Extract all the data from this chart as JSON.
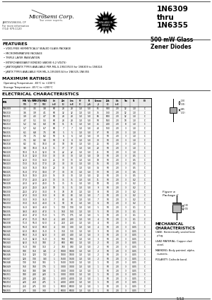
{
  "title_part": "1N6309\nthru\n1N6355",
  "subtitle": "500 mW Glass\nZener Diodes",
  "company": "Microsemi Corp.",
  "company_sub": "Your zener experts.",
  "page_ref": "JANTXV1N6336, CP\nFor more information\n(714) 979-1120",
  "features_title": "FEATURES",
  "features": [
    "VOID-FREE HERMETICALLY SEALED GLASS PACKAGE",
    "MICROMINIMATURE PACKAGE",
    "TRIPLE LAYER PASSIVATION",
    "INTERCHANGEABLY BONDED (ABOVE 6.2 VOLTS)",
    "JANTXV/JANTX TYPES AVAILABLE PER MIL-S-19500/533 for 1N6309 to 1N6324",
    "JANTX TYPES AVAILABLE FOR MIL-S-19500/534 for 1N6325-1N6355"
  ],
  "max_ratings_title": "MAXIMUM RATINGS",
  "max_ratings": [
    "Operating Temperature: -65°C to +200°C",
    "Storage Temperature: -65°C to +200°C"
  ],
  "elec_char_title": "ELECTRICAL CHARACTERISTICS",
  "table_note": "Figure a\nPackage C",
  "mech_title": "MECHANICAL\nCHARACTERISTICS",
  "mech_items": [
    "CASE: Hermetically sealed heat\n  plug.",
    "LEAD MATERIAL: Copper clad\n  steel.",
    "MARKING: Body painted, alpha-\n  numeric.",
    "POLARITY: Cathode band."
  ],
  "page_num": "5-53",
  "bg_color": "#ffffff",
  "star_text": "ALSO\nAVAILABLE IN\nSURFACE\nMOUNT",
  "table_col_headers": [
    "PIN",
    "MIN",
    "TYP",
    "MAX",
    "Izt\nmA",
    "Zzt\nΩ",
    "Izm\nmA",
    "Vf\nV",
    "IR\nmA",
    "Cz\npF",
    "Zzk\nΩ",
    "Izk\nmA",
    "Tm",
    "Tc",
    "CS"
  ],
  "table_rows": [
    [
      "1N6309",
      "3.3",
      "3.5",
      "3.8",
      "60",
      "28",
      "28",
      "1.0",
      "5.0",
      "85",
      "900",
      "2.0",
      "12",
      "1.0",
      "C"
    ],
    [
      "1N6310",
      "3.6",
      "3.9",
      "4.1",
      "60",
      "32",
      "32",
      "1.0",
      "5.0",
      "75",
      "750",
      "2.0",
      "12",
      "1.0",
      "C"
    ],
    [
      "1N6311",
      "3.9",
      "4.3",
      "4.7",
      "60",
      "28",
      "28",
      "1.0",
      "5.0",
      "65",
      "600",
      "2.0",
      "12",
      "1.0",
      "C"
    ],
    [
      "1N6312",
      "4.7",
      "5.1",
      "5.5",
      "60",
      "28",
      "28",
      "1.0",
      "5.0",
      "50",
      "550",
      "2.0",
      "10",
      "1.0",
      "C"
    ],
    [
      "1N6313",
      "5.2",
      "5.6",
      "6.0",
      "60",
      "11",
      "11",
      "1.0",
      "5.0",
      "45",
      "400",
      "2.0",
      "8",
      "1.0",
      "C"
    ],
    [
      "1N6314",
      "5.7",
      "6.2",
      "6.7",
      "60",
      "7",
      "7",
      "1.0",
      "5.0",
      "40",
      "150",
      "2.0",
      "3",
      "1.0",
      "C"
    ],
    [
      "1N6315",
      "6.1",
      "6.8",
      "7.5",
      "60",
      "5",
      "5",
      "1.0",
      "5.0",
      "37",
      "50",
      "2.0",
      "3",
      "1.0",
      "C"
    ],
    [
      "1N6316",
      "7.0",
      "7.5",
      "8.2",
      "50",
      "6",
      "6",
      "1.0",
      "5.0",
      "30",
      "50",
      "2.0",
      "3",
      "1.0",
      "C"
    ],
    [
      "1N6317",
      "7.5",
      "8.2",
      "9.0",
      "50",
      "8",
      "8",
      "1.0",
      "5.0",
      "30",
      "50",
      "2.0",
      "3",
      "1.0",
      "C"
    ],
    [
      "1N6318",
      "8.2",
      "9.1",
      "10.0",
      "40",
      "10",
      "10",
      "1.0",
      "5.0",
      "25",
      "50",
      "2.0",
      "3",
      "1.0",
      "C"
    ],
    [
      "1N6319",
      "9.0",
      "10.0",
      "11.0",
      "35",
      "17",
      "17",
      "1.0",
      "5.0",
      "23",
      "50",
      "2.0",
      "3",
      "1.0",
      "C"
    ],
    [
      "1N6320",
      "10.0",
      "11.0",
      "12.0",
      "30",
      "22",
      "22",
      "1.0",
      "5.0",
      "21",
      "50",
      "2.0",
      "3",
      "1.0",
      "C"
    ],
    [
      "1N6321",
      "11.0",
      "12.0",
      "13.0",
      "30",
      "30",
      "30",
      "1.0",
      "5.0",
      "19",
      "50",
      "2.0",
      "3",
      "0.5",
      "C"
    ],
    [
      "1N6322",
      "12.0",
      "13.0",
      "14.0",
      "25",
      "13",
      "13",
      "1.0",
      "5.0",
      "18",
      "50",
      "2.0",
      "3",
      "0.5",
      "C"
    ],
    [
      "1N6323",
      "13.0",
      "15.0",
      "17.0",
      "20",
      "30",
      "30",
      "1.0",
      "5.0",
      "15",
      "50",
      "2.0",
      "3",
      "0.5",
      "C"
    ],
    [
      "1N6324",
      "14.0",
      "16.0",
      "18.0",
      "20",
      "30",
      "30",
      "1.0",
      "5.0",
      "14",
      "50",
      "2.0",
      "3",
      "0.5",
      "C"
    ],
    [
      "1N6325",
      "15.0",
      "17.0",
      "19.0",
      "17",
      "30",
      "30",
      "1.0",
      "5.0",
      "13",
      "50",
      "2.0",
      "3",
      "0.5",
      "C"
    ],
    [
      "1N6326",
      "16.0",
      "18.0",
      "20.0",
      "15",
      "30",
      "30",
      "1.0",
      "5.0",
      "12",
      "50",
      "2.0",
      "3",
      "0.5",
      "C"
    ],
    [
      "1N6327",
      "17.0",
      "20.0",
      "22.0",
      "13",
      "35",
      "35",
      "1.0",
      "5.0",
      "11",
      "50",
      "2.0",
      "3",
      "0.2",
      "C"
    ],
    [
      "1N6328",
      "20.0",
      "22.0",
      "24.0",
      "11",
      "35",
      "35",
      "1.0",
      "5.0",
      "10",
      "50",
      "2.0",
      "3",
      "0.2",
      "C"
    ],
    [
      "1N6329",
      "22.0",
      "24.0",
      "26.0",
      "10",
      "35",
      "35",
      "1.0",
      "5.0",
      "9",
      "50",
      "2.0",
      "3",
      "0.2",
      "C"
    ],
    [
      "1N6330",
      "24.0",
      "27.0",
      "30.0",
      "9",
      "70",
      "70",
      "1.0",
      "5.0",
      "8",
      "50",
      "2.0",
      "3",
      "0.2",
      "C"
    ],
    [
      "1N6331",
      "27.0",
      "30.0",
      "33.0",
      "8",
      "80",
      "80",
      "1.0",
      "5.0",
      "7",
      "50",
      "2.0",
      "3",
      "0.2",
      "C"
    ],
    [
      "1N6332",
      "30.0",
      "33.0",
      "36.0",
      "7",
      "80",
      "80",
      "1.0",
      "5.0",
      "7",
      "50",
      "2.0",
      "3",
      "0.2",
      "C"
    ],
    [
      "1N6333",
      "33.0",
      "36.0",
      "40.0",
      "6",
      "90",
      "90",
      "1.0",
      "5.0",
      "6",
      "50",
      "2.0",
      "3",
      "0.2",
      "C"
    ],
    [
      "1N6334",
      "36.0",
      "39.0",
      "43.0",
      "5",
      "130",
      "130",
      "1.0",
      "5.0",
      "5",
      "50",
      "2.0",
      "3",
      "0.1",
      "C"
    ],
    [
      "1N6335",
      "39.0",
      "43.0",
      "47.0",
      "5",
      "150",
      "150",
      "1.0",
      "5.0",
      "5",
      "50",
      "2.0",
      "3",
      "0.1",
      "C"
    ],
    [
      "1N6336",
      "43.0",
      "47.0",
      "51.0",
      "5",
      "175",
      "175",
      "1.0",
      "5.0",
      "5",
      "50",
      "2.0",
      "3",
      "0.1",
      "C"
    ],
    [
      "1N6337",
      "47.0",
      "51.0",
      "56.0",
      "4",
      "200",
      "200",
      "1.0",
      "5.0",
      "4",
      "50",
      "2.0",
      "3",
      "0.1",
      "C"
    ],
    [
      "1N6338",
      "51.0",
      "56.0",
      "62.0",
      "4",
      "250",
      "250",
      "1.0",
      "5.0",
      "4",
      "50",
      "2.0",
      "3",
      "0.1",
      "C"
    ],
    [
      "1N6339",
      "56.0",
      "62.0",
      "68.0",
      "4",
      "300",
      "300",
      "1.0",
      "5.0",
      "4",
      "50",
      "2.0",
      "3",
      "0.05",
      "C"
    ],
    [
      "1N6340",
      "62.0",
      "68.0",
      "75.0",
      "3",
      "350",
      "350",
      "1.0",
      "5.0",
      "3",
      "50",
      "2.0",
      "3",
      "0.05",
      "C"
    ],
    [
      "1N6341",
      "68.0",
      "75.0",
      "82.0",
      "3",
      "400",
      "400",
      "1.0",
      "5.0",
      "3",
      "50",
      "2.0",
      "3",
      "0.05",
      "C"
    ],
    [
      "1N6342",
      "75.0",
      "82.0",
      "91.0",
      "3",
      "500",
      "500",
      "1.0",
      "5.0",
      "3",
      "50",
      "2.0",
      "3",
      "0.05",
      "C"
    ],
    [
      "1N6343",
      "82.0",
      "91.0",
      "100",
      "2",
      "600",
      "600",
      "1.0",
      "5.0",
      "2",
      "50",
      "2.0",
      "3",
      "0.05",
      "C"
    ],
    [
      "1N6344",
      "91.0",
      "100",
      "110",
      "2",
      "700",
      "700",
      "1.0",
      "5.0",
      "2",
      "50",
      "2.0",
      "3",
      "0.05",
      "C"
    ],
    [
      "1N6345",
      "100",
      "110",
      "121",
      "2",
      "1000",
      "1000",
      "1.0",
      "5.0",
      "2",
      "50",
      "2.0",
      "3",
      "0.05",
      "C"
    ],
    [
      "1N6346",
      "110",
      "120",
      "132",
      "2",
      "1000",
      "1000",
      "1.0",
      "5.0",
      "2",
      "50",
      "2.0",
      "3",
      "0.05",
      "C"
    ],
    [
      "1N6347",
      "120",
      "130",
      "143",
      "1",
      "1500",
      "1500",
      "1.0",
      "5.0",
      "2",
      "50",
      "2.0",
      "3",
      "0.05",
      "C"
    ],
    [
      "1N6348",
      "130",
      "150",
      "165",
      "1",
      "1500",
      "1500",
      "1.0",
      "5.0",
      "1",
      "50",
      "2.0",
      "3",
      "0.05",
      "C"
    ],
    [
      "1N6349",
      "150",
      "160",
      "176",
      "1",
      "3000",
      "3000",
      "1.0",
      "5.0",
      "1",
      "50",
      "2.0",
      "3",
      "0.05",
      "C"
    ],
    [
      "1N6350",
      "160",
      "180",
      "198",
      "1",
      "3000",
      "3000",
      "1.0",
      "5.0",
      "1",
      "50",
      "2.0",
      "3",
      "0.05",
      "C"
    ],
    [
      "1N6351",
      "180",
      "200",
      "220",
      "1",
      "3000",
      "3000",
      "1.0",
      "5.0",
      "1",
      "50",
      "2.0",
      "3",
      "0.05",
      "C"
    ],
    [
      "1N6352",
      "200",
      "220",
      "242",
      "1",
      "4000",
      "4000",
      "1.0",
      "5.0",
      "1",
      "50",
      "2.0",
      "3",
      "0.05",
      "C"
    ],
    [
      "1N6353",
      "220",
      "250",
      "275",
      "1",
      "4000",
      "4000",
      "1.0",
      "5.0",
      "1",
      "50",
      "2.0",
      "3",
      "0.05",
      "C"
    ],
    [
      "1N6354",
      "250",
      "275",
      "303",
      "1",
      "6000",
      "6000",
      "1.0",
      "5.0",
      "1",
      "50",
      "2.0",
      "3",
      "0.05",
      "C"
    ],
    [
      "1N6355",
      "275",
      "300",
      "330",
      "1",
      "6000",
      "6000",
      "1.0",
      "5.0",
      "1",
      "50",
      "2.0",
      "3",
      "0.05",
      "C"
    ]
  ]
}
